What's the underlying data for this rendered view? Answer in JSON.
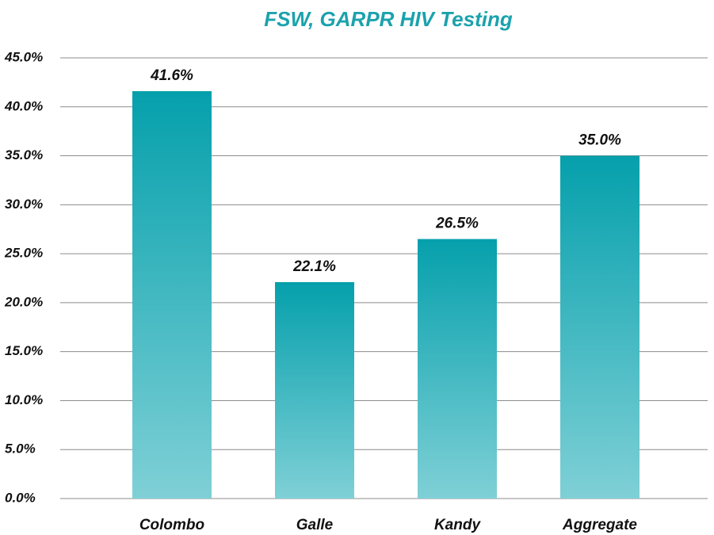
{
  "chart_data": {
    "type": "bar",
    "title": "FSW, GARPR HIV Testing",
    "categories": [
      "Colombo",
      "Galle",
      "Kandy",
      "Aggregate"
    ],
    "values": [
      41.6,
      22.1,
      26.5,
      35.0
    ],
    "value_labels": [
      "41.6%",
      "22.1%",
      "26.5%",
      "35.0%"
    ],
    "color": "#05a0ac",
    "ylim": [
      0,
      45
    ],
    "yticks": [
      {
        "value": 0,
        "label": "0.0%"
      },
      {
        "value": 5,
        "label": "5.0%"
      },
      {
        "value": 10,
        "label": "10.0%"
      },
      {
        "value": 15,
        "label": "15.0%"
      },
      {
        "value": 20,
        "label": "20.0%"
      },
      {
        "value": 25,
        "label": "25.0%"
      },
      {
        "value": 30,
        "label": "30.0%"
      },
      {
        "value": 35,
        "label": "35.0%"
      },
      {
        "value": 40,
        "label": "40.0%"
      },
      {
        "value": 45,
        "label": "45.0%"
      }
    ],
    "grid": true
  }
}
